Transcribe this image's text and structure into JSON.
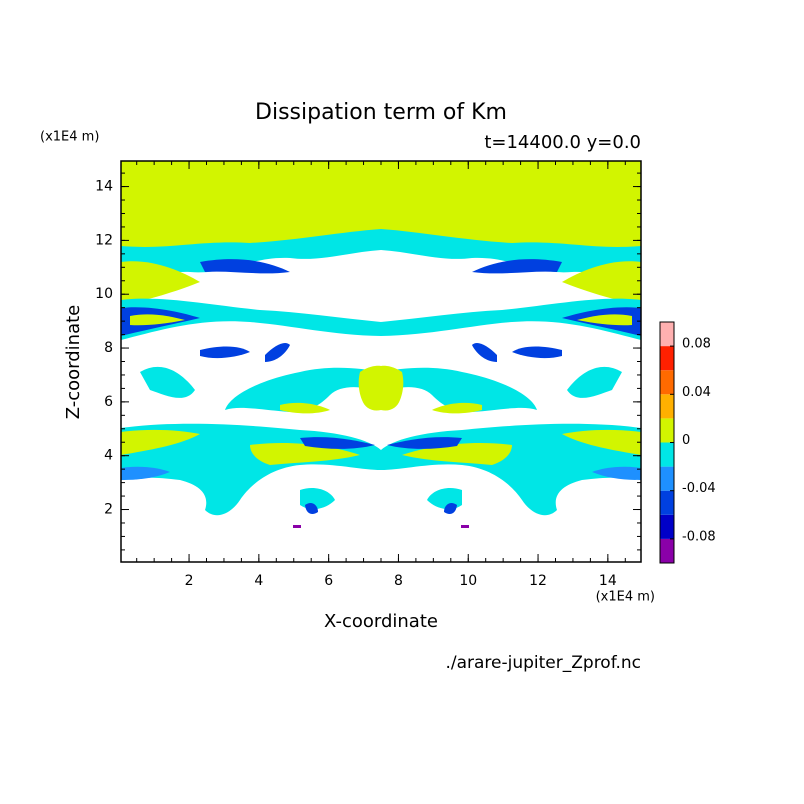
{
  "chart_data": {
    "type": "contour",
    "title": "Dissipation term of Km",
    "subtitle": "t=14400.0 y=0.0",
    "x_label": "X-coordinate",
    "y_label": "Z-coordinate",
    "x_unit": "(x1E4 m)",
    "y_unit": "(x1E4 m)",
    "source": "./arare-jupiter_Zprof.nc",
    "xlim": [
      0.05,
      14.95
    ],
    "ylim": [
      0.05,
      14.95
    ],
    "xticks": [
      2,
      4,
      6,
      8,
      10,
      12,
      14
    ],
    "yticks": [
      2,
      4,
      6,
      8,
      10,
      12,
      14
    ],
    "colorbar": {
      "levels": [
        -0.1,
        -0.08,
        -0.06,
        -0.04,
        -0.02,
        0,
        0.02,
        0.04,
        0.06,
        0.08,
        0.1
      ],
      "colors": [
        "#8a00a8",
        "#0000c8",
        "#0040e0",
        "#1e90ff",
        "#00e6e6",
        "#d2f500",
        "#ffb000",
        "#ff6a00",
        "#ff2000",
        "#ffb0b0"
      ],
      "ticks": [
        -0.08,
        -0.04,
        0,
        0.04,
        0.08
      ]
    }
  }
}
